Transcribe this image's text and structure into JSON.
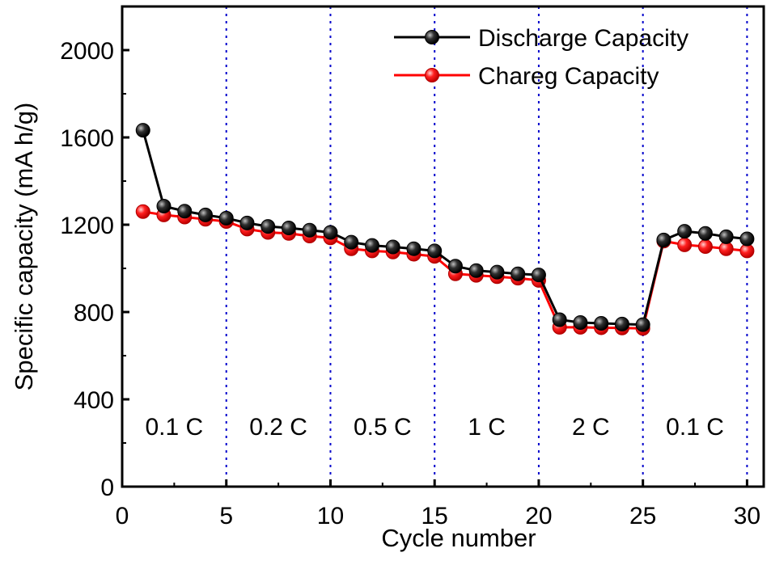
{
  "chart_data": {
    "type": "line",
    "xlabel": "Cycle number",
    "ylabel": "Specific capacity (mA h/g)",
    "xlim": [
      0,
      30.8
    ],
    "ylim": [
      0,
      2200
    ],
    "x_ticks": [
      0,
      5,
      10,
      15,
      20,
      25,
      30
    ],
    "y_ticks": [
      0,
      400,
      800,
      1200,
      1600,
      2000
    ],
    "grid": false,
    "legend_position": "top-right",
    "x": [
      1,
      2,
      3,
      4,
      5,
      6,
      7,
      8,
      9,
      10,
      11,
      12,
      13,
      14,
      15,
      16,
      17,
      18,
      19,
      20,
      21,
      22,
      23,
      24,
      25,
      26,
      27,
      28,
      29,
      30
    ],
    "series": [
      {
        "name": "Discharge Capacity",
        "color": "#000000",
        "values": [
          1633,
          1285,
          1262,
          1245,
          1230,
          1208,
          1192,
          1185,
          1175,
          1165,
          1120,
          1105,
          1098,
          1090,
          1080,
          1010,
          990,
          983,
          975,
          970,
          765,
          752,
          748,
          745,
          742,
          1130,
          1170,
          1160,
          1145,
          1135
        ]
      },
      {
        "name": "Chareg Capacity",
        "color": "#ff0000",
        "values": [
          1260,
          1245,
          1235,
          1225,
          1215,
          1180,
          1165,
          1160,
          1148,
          1140,
          1090,
          1080,
          1075,
          1065,
          1055,
          975,
          968,
          962,
          955,
          945,
          730,
          730,
          728,
          727,
          725,
          1125,
          1108,
          1100,
          1090,
          1080
        ]
      }
    ],
    "dividers": [
      5,
      10,
      15,
      20,
      25,
      30
    ],
    "divider_color": "#0000cc",
    "regions": [
      {
        "label": "0.1 C",
        "x_center": 2.5
      },
      {
        "label": "0.2 C",
        "x_center": 7.5
      },
      {
        "label": "0.5 C",
        "x_center": 12.5
      },
      {
        "label": "1 C",
        "x_center": 17.5
      },
      {
        "label": "2 C",
        "x_center": 22.5
      },
      {
        "label": "0.1 C",
        "x_center": 27.5
      }
    ],
    "region_label_value": 278
  }
}
